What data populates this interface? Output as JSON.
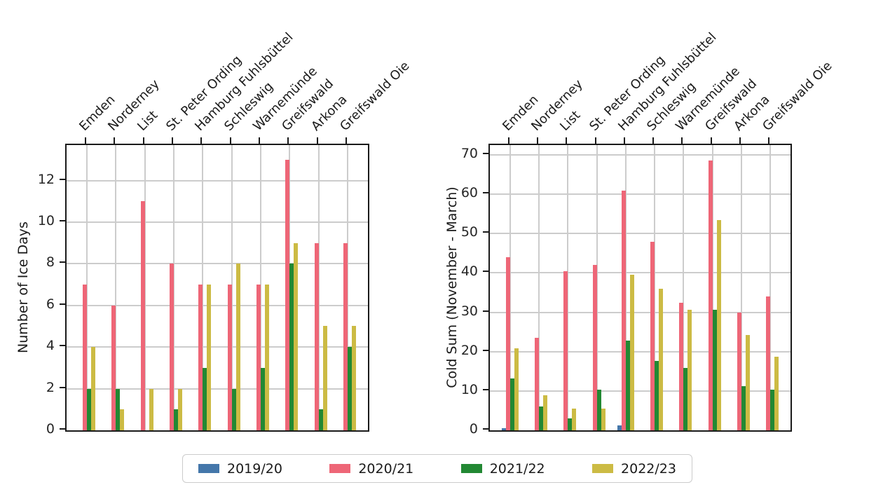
{
  "figure": {
    "background": "#ffffff",
    "grid_color": "#cccccc",
    "spine_color": "#1a1a1a"
  },
  "chart_data": [
    {
      "type": "bar",
      "title": "",
      "ylabel": "Number of Ice Days",
      "xlabel": "",
      "grid": true,
      "legend_position": "bottom-center-shared",
      "categories": [
        "Emden",
        "Norderney",
        "List",
        "St. Peter Ording",
        "Hamburg Fuhlsbüttel",
        "Schleswig",
        "Warnemünde",
        "Greifswald",
        "Arkona",
        "Greifswald Oie"
      ],
      "series": [
        {
          "name": "2019/20",
          "color": "#4477AA",
          "values": [
            0,
            0,
            0,
            0,
            0,
            0,
            0,
            0,
            0,
            0
          ]
        },
        {
          "name": "2020/21",
          "color": "#EE6677",
          "values": [
            7,
            6,
            11,
            8,
            7,
            7,
            7,
            13,
            9,
            9
          ]
        },
        {
          "name": "2021/22",
          "color": "#228833",
          "values": [
            2,
            2,
            0,
            1,
            3,
            2,
            3,
            8,
            1,
            4
          ]
        },
        {
          "name": "2022/23",
          "color": "#CCBB44",
          "values": [
            4,
            1,
            2,
            2,
            7,
            8,
            7,
            9,
            5,
            5
          ]
        }
      ],
      "yticks": [
        0,
        2,
        4,
        6,
        8,
        10,
        12
      ],
      "ylim": [
        0,
        13.7
      ]
    },
    {
      "type": "bar",
      "title": "",
      "ylabel": "Cold Sum (November - March)",
      "xlabel": "",
      "grid": true,
      "legend_position": "bottom-center-shared",
      "categories": [
        "Emden",
        "Norderney",
        "List",
        "St. Peter Ording",
        "Hamburg Fuhlsbüttel",
        "Schleswig",
        "Warnemünde",
        "Greifswald",
        "Arkona",
        "Greifswald Oie"
      ],
      "series": [
        {
          "name": "2019/20",
          "color": "#4477AA",
          "values": [
            0.5,
            0,
            0,
            0,
            1.3,
            0,
            0,
            0,
            0,
            0
          ]
        },
        {
          "name": "2020/21",
          "color": "#EE6677",
          "values": [
            44,
            23.5,
            40.5,
            42,
            61,
            48,
            32.5,
            68.5,
            30,
            34
          ]
        },
        {
          "name": "2021/22",
          "color": "#228833",
          "values": [
            13.2,
            6,
            3.1,
            10.3,
            22.8,
            17.7,
            15.8,
            30.6,
            11.2,
            10.4
          ]
        },
        {
          "name": "2022/23",
          "color": "#CCBB44",
          "values": [
            20.8,
            8.9,
            5.5,
            5.6,
            39.5,
            36,
            30.7,
            53.5,
            24.3,
            18.7
          ]
        }
      ],
      "yticks": [
        0,
        10,
        20,
        30,
        40,
        50,
        60,
        70
      ],
      "ylim": [
        0,
        72.5
      ]
    }
  ],
  "legend": {
    "entries": [
      {
        "label": "2019/20",
        "color": "#4477AA"
      },
      {
        "label": "2020/21",
        "color": "#EE6677"
      },
      {
        "label": "2021/22",
        "color": "#228833"
      },
      {
        "label": "2022/23",
        "color": "#CCBB44"
      }
    ]
  }
}
